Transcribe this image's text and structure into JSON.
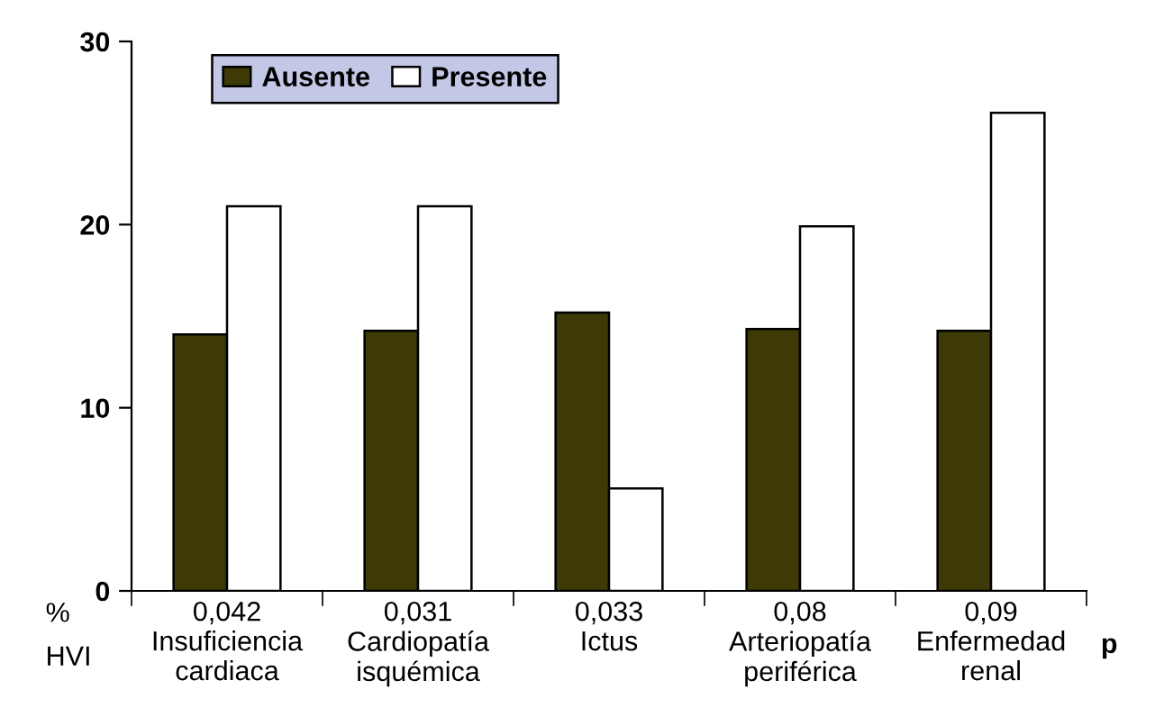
{
  "chart_data": {
    "type": "bar",
    "xlabel": "p",
    "ylabel": "%\nHVI",
    "categories": [
      "0,042\nInsuficiencia\ncardiaca",
      "0,031\nCardiopatía\nisquémica",
      "0,033\nIctus",
      "0,08\nArteriopatía\nperiférica",
      "0,09\nEnfermedad\nrenal"
    ],
    "series": [
      {
        "name": "Ausente",
        "color": "#3d3a06",
        "values": [
          14.0,
          14.2,
          15.2,
          14.3,
          14.2
        ]
      },
      {
        "name": "Presente",
        "color": "#ffffff",
        "values": [
          21.0,
          21.0,
          5.6,
          19.9,
          26.1
        ]
      }
    ],
    "ylim": [
      0,
      30
    ],
    "yticks": [
      0,
      10,
      20,
      30
    ],
    "grid": false,
    "legend": "top left"
  }
}
